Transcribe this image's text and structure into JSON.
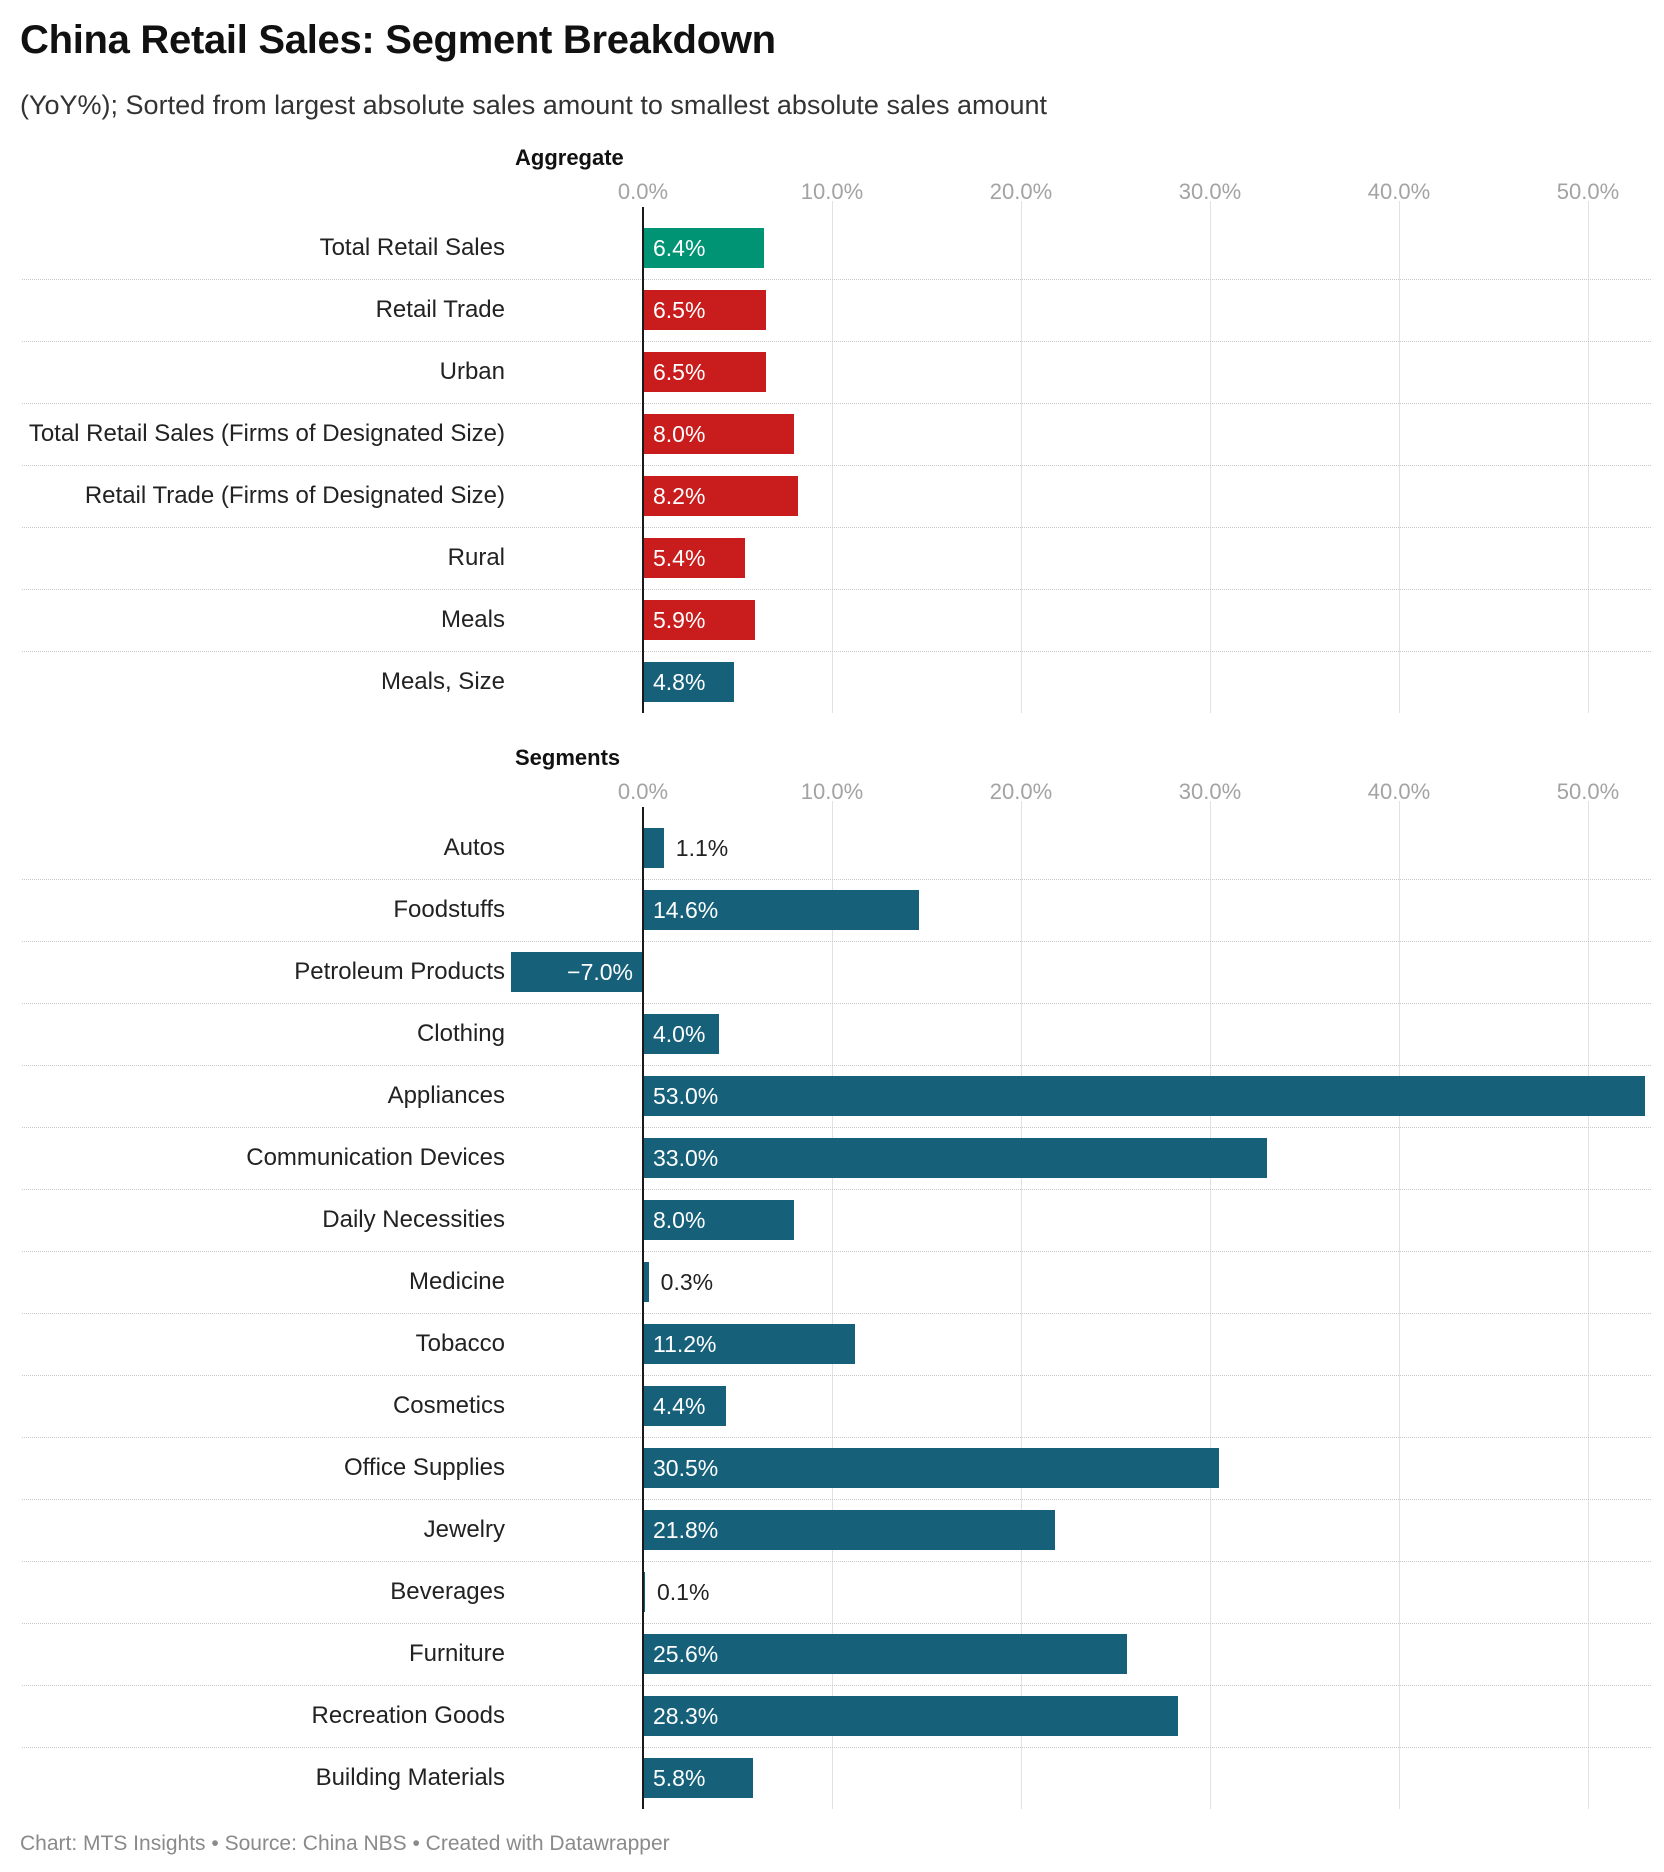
{
  "header": {
    "title": "China Retail Sales: Segment Breakdown",
    "subtitle": "(YoY%); Sorted from largest absolute sales amount to smallest absolute sales amount"
  },
  "footer": {
    "credit": "Chart: MTS Insights • Source: China NBS • Created with Datawrapper"
  },
  "colors": {
    "total": "#009474",
    "aggregate": "#c91d1d",
    "segment": "#16607a",
    "grid": "#e2e2e2",
    "axis_text": "#a3a3a3"
  },
  "chart_data": [
    {
      "type": "bar",
      "orientation": "horizontal",
      "title": "Aggregate",
      "xlim": [
        -7.0,
        53.0
      ],
      "ticks": [
        0,
        10,
        20,
        30,
        40,
        50
      ],
      "tick_labels": [
        "0.0%",
        "10.0%",
        "20.0%",
        "30.0%",
        "40.0%",
        "50.0%"
      ],
      "grid": true,
      "categories": [
        "Total Retail Sales",
        "Retail Trade",
        "Urban",
        "Total Retail Sales (Firms of Designated Size)",
        "Retail Trade (Firms of Designated Size)",
        "Rural",
        "Meals",
        "Meals, Size"
      ],
      "values": [
        6.4,
        6.5,
        6.5,
        8.0,
        8.2,
        5.4,
        5.9,
        4.8
      ],
      "value_labels": [
        "6.4%",
        "6.5%",
        "6.5%",
        "8.0%",
        "8.2%",
        "5.4%",
        "5.9%",
        "4.8%"
      ],
      "bar_colors": [
        "#009474",
        "#c91d1d",
        "#c91d1d",
        "#c91d1d",
        "#c91d1d",
        "#c91d1d",
        "#c91d1d",
        "#16607a"
      ]
    },
    {
      "type": "bar",
      "orientation": "horizontal",
      "title": "Segments",
      "xlim": [
        -7.0,
        53.0
      ],
      "ticks": [
        0,
        10,
        20,
        30,
        40,
        50
      ],
      "tick_labels": [
        "0.0%",
        "10.0%",
        "20.0%",
        "30.0%",
        "40.0%",
        "50.0%"
      ],
      "grid": true,
      "categories": [
        "Autos",
        "Foodstuffs",
        "Petroleum Products",
        "Clothing",
        "Appliances",
        "Communication Devices",
        "Daily Necessities",
        "Medicine",
        "Tobacco",
        "Cosmetics",
        "Office Supplies",
        "Jewelry",
        "Beverages",
        "Furniture",
        "Recreation Goods",
        "Building Materials"
      ],
      "values": [
        1.1,
        14.6,
        -7.0,
        4.0,
        53.0,
        33.0,
        8.0,
        0.3,
        11.2,
        4.4,
        30.5,
        21.8,
        0.1,
        25.6,
        28.3,
        5.8
      ],
      "value_labels": [
        "1.1%",
        "14.6%",
        "−7.0%",
        "4.0%",
        "53.0%",
        "33.0%",
        "8.0%",
        "0.3%",
        "11.2%",
        "4.4%",
        "30.5%",
        "21.8%",
        "0.1%",
        "25.6%",
        "28.3%",
        "5.8%"
      ],
      "bar_colors": [
        "#16607a",
        "#16607a",
        "#16607a",
        "#16607a",
        "#16607a",
        "#16607a",
        "#16607a",
        "#16607a",
        "#16607a",
        "#16607a",
        "#16607a",
        "#16607a",
        "#16607a",
        "#16607a",
        "#16607a",
        "#16607a"
      ]
    }
  ]
}
